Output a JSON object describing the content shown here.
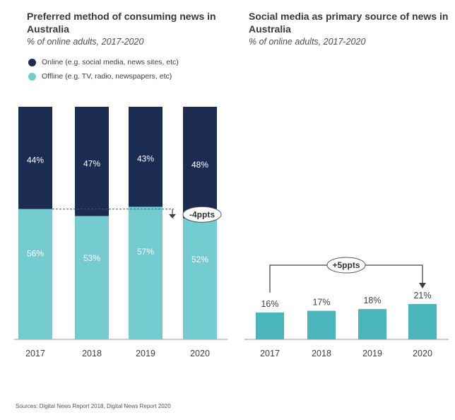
{
  "chart_data": [
    {
      "type": "bar",
      "stacked": true,
      "title": "Preferred method of consuming news in Australia",
      "subtitle": "% of online adults, 2017-2020",
      "categories": [
        "2017",
        "2018",
        "2019",
        "2020"
      ],
      "series": [
        {
          "name": "Online (e.g. social media, news sites, etc)",
          "values": [
            44,
            47,
            43,
            48
          ],
          "labels": [
            "44%",
            "47%",
            "43%",
            "48%"
          ],
          "color": "#1c2b52"
        },
        {
          "name": "Offline (e.g. TV, radio, newspapers, etc)",
          "values": [
            56,
            53,
            57,
            52
          ],
          "labels": [
            "56%",
            "53%",
            "57%",
            "52%"
          ],
          "color": "#74cbd0"
        }
      ],
      "annotation": "-4ppts",
      "ylim": [
        0,
        100
      ]
    },
    {
      "type": "bar",
      "title": "Social media as primary source of news in Australia",
      "subtitle": "% of online adults, 2017-2020",
      "categories": [
        "2017",
        "2018",
        "2019",
        "2020"
      ],
      "values": [
        16,
        17,
        18,
        21
      ],
      "labels": [
        "16%",
        "17%",
        "18%",
        "21%"
      ],
      "color": "#4bb5bd",
      "annotation": "+5ppts",
      "ylim": [
        0,
        100
      ]
    }
  ],
  "footer": {
    "source": "Sources: Digital News Report 2018, Digital News Report 2020"
  }
}
